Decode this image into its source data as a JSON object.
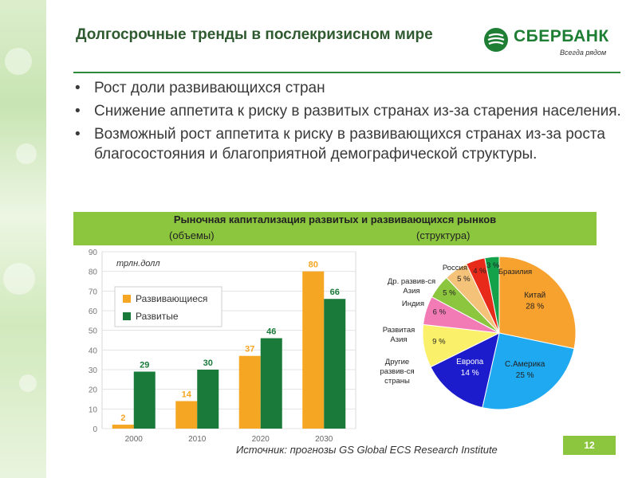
{
  "header": {
    "title": "Долгосрочные тренды в послекризисном мире",
    "logo": {
      "name": "СБЕРБАНК",
      "tagline": "Всегда рядом"
    }
  },
  "bullets": [
    "Рост доли развивающихся стран",
    "Снижение аппетита к риску в развитых странах из-за старения населения.",
    "Возможный рост аппетита к риску в развивающихся странах из-за роста благосостояния и благоприятной демографической структуры."
  ],
  "chart_section": {
    "title": "Рыночная капитализация развитых и развивающихся рынков",
    "left_subtitle": "(объемы)",
    "right_subtitle": "(структура)"
  },
  "colors": {
    "brand_green": "#1e7e34",
    "band_green": "#8cc63e",
    "developing": "#f5a623",
    "developed": "#1a7a3a"
  },
  "chart_data": [
    {
      "type": "bar",
      "unit_label": "трлн.долл",
      "categories": [
        "2000",
        "2010",
        "2020",
        "2030"
      ],
      "series": [
        {
          "name": "Развивающиеся",
          "color": "#f5a623",
          "values": [
            2,
            14,
            37,
            80
          ]
        },
        {
          "name": "Развитые",
          "color": "#1a7a3a",
          "values": [
            29,
            30,
            46,
            66
          ]
        }
      ],
      "ylim": [
        0,
        90
      ],
      "yticks": [
        "0",
        "10",
        "20",
        "30",
        "40",
        "50",
        "60",
        "70",
        "80",
        "90"
      ],
      "legend": "top-left",
      "grid": true
    },
    {
      "type": "pie",
      "slices": [
        {
          "label": "Китай",
          "value": 28,
          "value_text": "28 %",
          "color": "#f7a12e"
        },
        {
          "label": "С.Америка",
          "value": 25,
          "value_text": "25 %",
          "color": "#1ea9f0"
        },
        {
          "label": "Европа",
          "value": 14,
          "value_text": "14 %",
          "color": "#1c1ccc"
        },
        {
          "label": "Другие развив-ся страны",
          "value": 9,
          "value_text": "9 %",
          "color": "#fbf06a"
        },
        {
          "label": "Развитая Азия",
          "value": 6,
          "value_text": "6 %",
          "color": "#f27bb6"
        },
        {
          "label": "Индия",
          "value": 5,
          "value_text": "5 %",
          "color": "#8cc63e"
        },
        {
          "label": "Др. развив-ся Азия",
          "value": 5,
          "value_text": "5 %",
          "color": "#f5c27a"
        },
        {
          "label": "Россия",
          "value": 4,
          "value_text": "4 %",
          "color": "#e82a1a"
        },
        {
          "label": "Бразилия",
          "value": 3,
          "value_text": "3 %",
          "color": "#13a14a"
        }
      ]
    }
  ],
  "footer": {
    "source": "Источник: прогнозы GS Global ECS Research Institute",
    "page_number": "12"
  }
}
